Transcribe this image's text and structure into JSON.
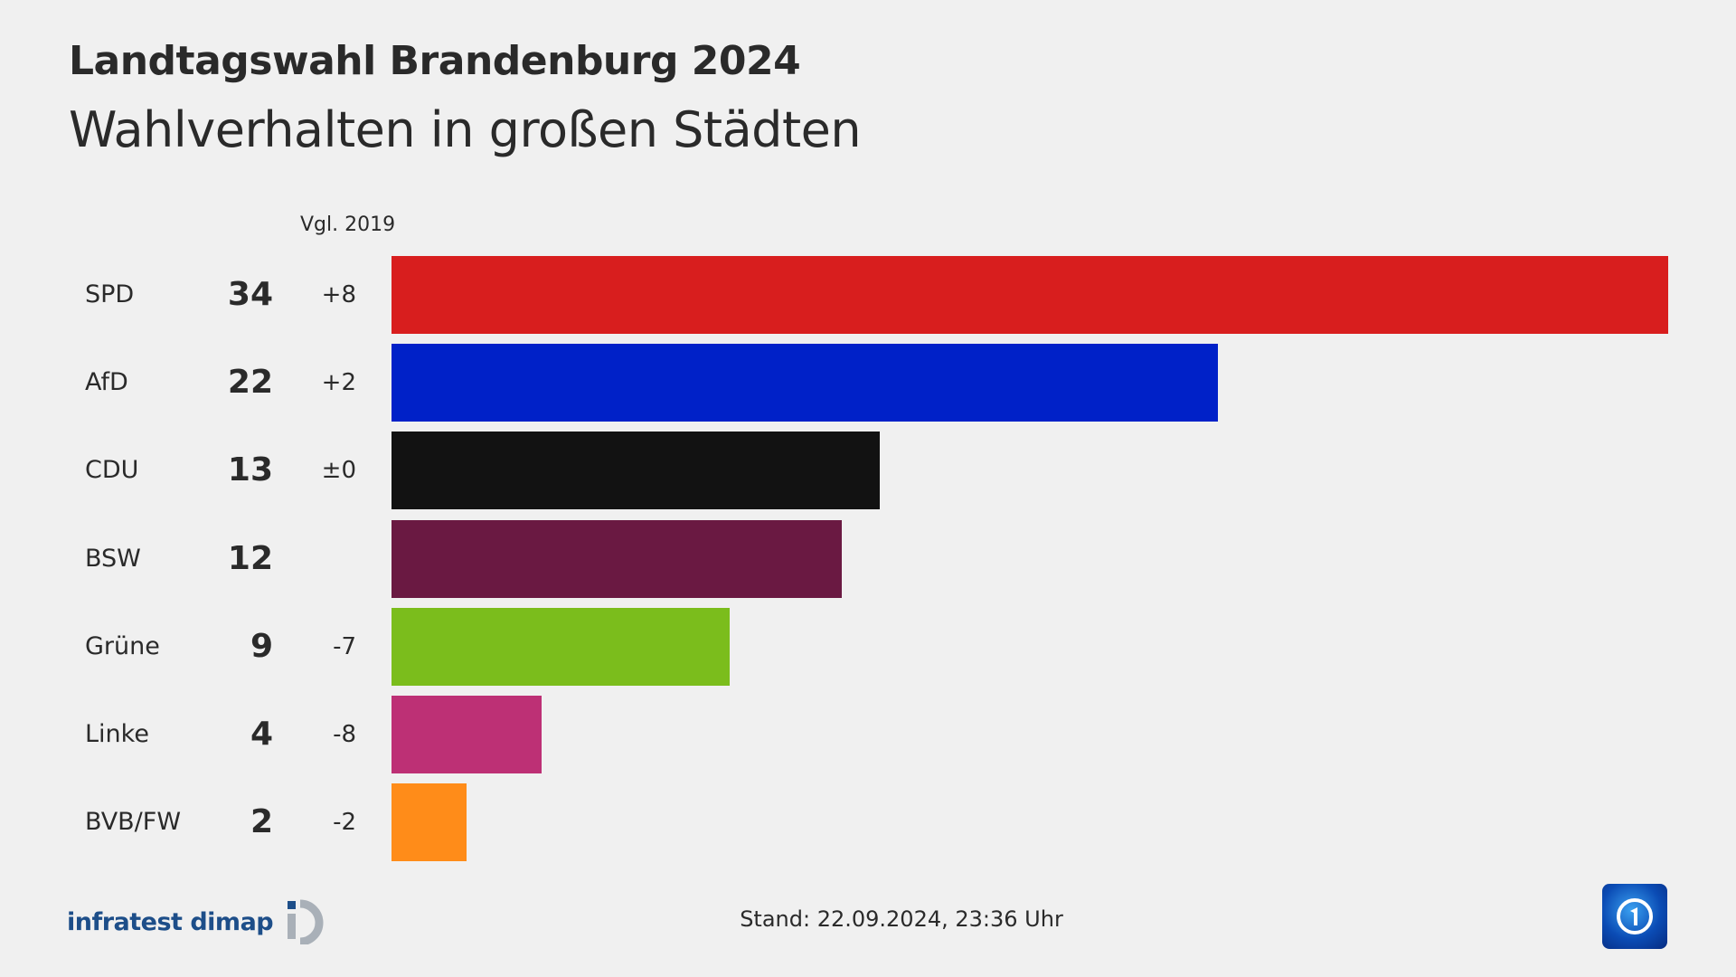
{
  "header": {
    "title": "Landtagswahl Brandenburg 2024",
    "subtitle": "Wahlverhalten in großen Städten"
  },
  "chart_data": {
    "type": "bar",
    "orientation": "horizontal",
    "change_header": "Vgl. 2019",
    "categories": [
      "SPD",
      "AfD",
      "CDU",
      "BSW",
      "Grüne",
      "Linke",
      "BVB/FW"
    ],
    "values": [
      34,
      22,
      13,
      12,
      9,
      4,
      2
    ],
    "value_labels": [
      "34",
      "22",
      "13",
      "12",
      "9",
      "4",
      "2"
    ],
    "changes": [
      "+8",
      "+2",
      "±0",
      "",
      "-7",
      "-8",
      "-2"
    ],
    "colors": [
      "#d81e1e",
      "#0021c8",
      "#121212",
      "#6a1942",
      "#7bbd1c",
      "#bd3075",
      "#ff8c19"
    ],
    "xlim": [
      0,
      34
    ],
    "grid": false
  },
  "footer": {
    "source": "infratest dimap",
    "stand": "Stand:  22.09.2024, 23:36 Uhr",
    "broadcaster_logo": "tagesschau-logo"
  }
}
